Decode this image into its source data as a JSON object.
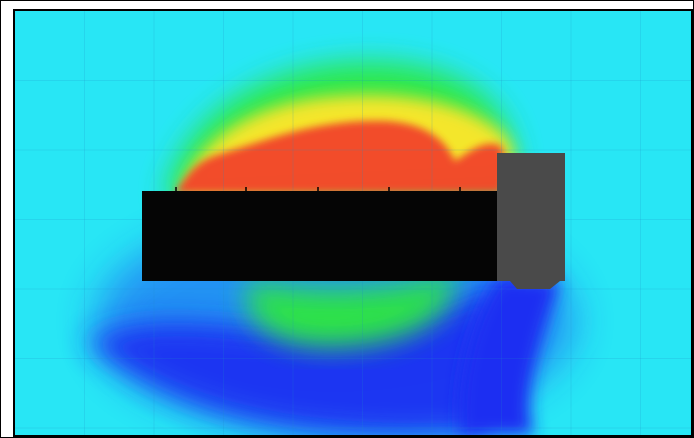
{
  "figure": {
    "colors": {
      "background": "#28e6f5",
      "red": "#f24a2a",
      "yellow": "#ffe62a",
      "green": "#2ee83c",
      "blue": "#1f2ef2",
      "solid_body": "#050505",
      "obstacle": "#4a4a4a",
      "grid": "#1f8cc8"
    },
    "legend": []
  }
}
